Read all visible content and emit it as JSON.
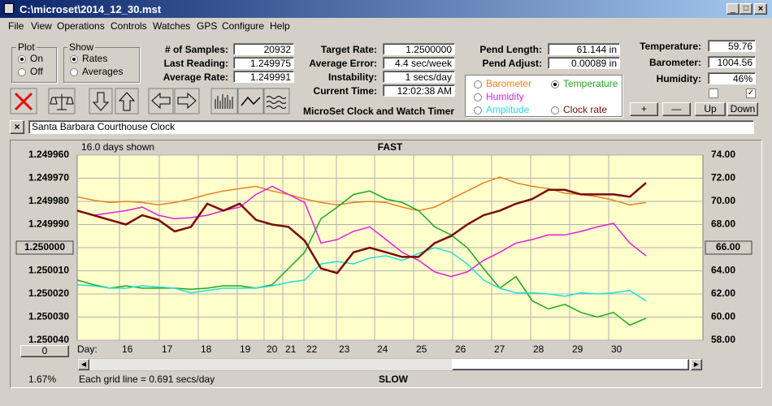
{
  "window": {
    "title": "C:\\microset\\2014_12_30.mst"
  },
  "menu": [
    "File",
    "View",
    "Operations",
    "Controls",
    "Watches",
    "GPS",
    "Configure",
    "Help"
  ],
  "plot_group": {
    "label": "Plot",
    "options": [
      "On",
      "Off"
    ]
  },
  "show_group": {
    "label": "Show",
    "options": [
      "Rates",
      "Averages"
    ]
  },
  "readouts": {
    "samples": {
      "label": "# of Samples:",
      "value": "20932"
    },
    "last_reading": {
      "label": "Last Reading:",
      "value": "1.249975"
    },
    "average_rate": {
      "label": "Average Rate:",
      "value": "1.249991"
    },
    "target_rate": {
      "label": "Target Rate:",
      "value": "1.2500000"
    },
    "average_error": {
      "label": "Average Error:",
      "value": "4.4 sec/week"
    },
    "instability": {
      "label": "Instability:",
      "value": "1 secs/day"
    },
    "current_time": {
      "label": "Current Time:",
      "value": "12:02:38 AM"
    },
    "pend_length": {
      "label": "Pend Length:",
      "value": "61.144 in"
    },
    "pend_adjust": {
      "label": "Pend Adjust:",
      "value": "0.00089 in"
    },
    "temperature": {
      "label": "Temperature:",
      "value": "59.76"
    },
    "barometer": {
      "label": "Barometer:",
      "value": "1004.56"
    },
    "humidity": {
      "label": "Humidity:",
      "value": "46%"
    }
  },
  "app_name": "MicroSet Clock and Watch Timer",
  "buttons": [
    "+",
    "—",
    "Up",
    "Down"
  ],
  "clock_name": "Santa Barbara Courthouse Clock",
  "chart": {
    "type": "line",
    "days_shown": "16.0 days shown",
    "top_label": "FAST",
    "bottom_label": "SLOW",
    "x_label": "Day:",
    "categories": [
      "16",
      "17",
      "18",
      "19",
      "20",
      "21",
      "22",
      "23",
      "24",
      "25",
      "26",
      "27",
      "28",
      "29",
      "30"
    ],
    "ylim": [
      1.24996,
      1.25004
    ],
    "y_inverted": true,
    "yticks": [
      {
        "value": 1.24996,
        "label": "1.249960"
      },
      {
        "value": 1.24997,
        "label": "1.249970"
      },
      {
        "value": 1.24998,
        "label": "1.249980"
      },
      {
        "value": 1.24999,
        "label": "1.249990"
      },
      {
        "value": 1.25,
        "label": "1.250000"
      },
      {
        "value": 1.25001,
        "label": "1.250010"
      },
      {
        "value": 1.25002,
        "label": "1.250020"
      },
      {
        "value": 1.25003,
        "label": "1.250030"
      },
      {
        "value": 1.25004,
        "label": "1.250040"
      }
    ],
    "y2lim": [
      58,
      74
    ],
    "y2ticks": [
      {
        "value": 58,
        "label": "58.00"
      },
      {
        "value": 60,
        "label": "60.00"
      },
      {
        "value": 62,
        "label": "62.00"
      },
      {
        "value": 64,
        "label": "64.00"
      },
      {
        "value": 66,
        "label": "66.00"
      },
      {
        "value": 68,
        "label": "68.00"
      },
      {
        "value": 70,
        "label": "70.00"
      },
      {
        "value": 72,
        "label": "72.00"
      },
      {
        "value": 74,
        "label": "74.00"
      }
    ],
    "grid": true,
    "background": "#ffffcc",
    "series": [
      {
        "name": "Barometer",
        "color": "#e8821e",
        "axis": "y2",
        "values": [
          70.4,
          70.1,
          69.9,
          70.0,
          69.9,
          69.7,
          69.9,
          70.2,
          70.6,
          70.9,
          71.1,
          71.3,
          70.9,
          70.6,
          70.2,
          69.9,
          69.7,
          69.9,
          70.0,
          69.9,
          69.5,
          69.2,
          69.5,
          70.2,
          70.9,
          71.6,
          72.1,
          71.6,
          71.3,
          71.1,
          70.7,
          70.6,
          70.4,
          70.1,
          69.7,
          69.9
        ]
      },
      {
        "name": "Temperature",
        "color": "#1fa81f",
        "axis": "y2",
        "values": [
          63.2,
          62.8,
          62.5,
          62.7,
          62.5,
          62.5,
          62.5,
          62.4,
          62.5,
          62.7,
          62.7,
          62.5,
          62.8,
          64.2,
          65.6,
          68.5,
          69.5,
          70.6,
          70.9,
          70.2,
          69.9,
          69.2,
          67.8,
          67.1,
          66.0,
          64.2,
          62.5,
          63.5,
          61.4,
          60.7,
          61.1,
          60.4,
          60.0,
          60.4,
          59.3,
          59.9
        ]
      },
      {
        "name": "Humidity",
        "color": "#dd22dd",
        "axis": "y2",
        "values": [
          69.2,
          68.8,
          69.0,
          69.2,
          69.5,
          68.8,
          68.5,
          68.6,
          68.8,
          69.2,
          69.5,
          70.6,
          71.3,
          70.6,
          69.9,
          66.4,
          66.7,
          67.4,
          67.8,
          66.7,
          65.6,
          64.9,
          63.9,
          63.5,
          63.9,
          64.9,
          65.6,
          66.4,
          66.7,
          67.1,
          67.1,
          67.4,
          67.8,
          68.1,
          66.4,
          65.3
        ]
      },
      {
        "name": "Amplitude",
        "color": "#22dddd",
        "axis": "y2",
        "values": [
          62.8,
          62.7,
          62.5,
          62.5,
          62.7,
          62.6,
          62.5,
          62.1,
          62.3,
          62.5,
          62.5,
          62.5,
          62.7,
          63.0,
          63.2,
          64.6,
          64.8,
          64.6,
          65.1,
          65.3,
          64.9,
          65.5,
          66.0,
          65.6,
          64.6,
          63.2,
          62.5,
          62.1,
          62.1,
          62.0,
          61.8,
          62.1,
          62.0,
          62.1,
          62.3,
          61.4
        ]
      },
      {
        "name": "Clock rate",
        "color": "#7a0a0a",
        "axis": "y",
        "values": [
          1.249984,
          1.249986,
          1.249988,
          1.24999,
          1.249986,
          1.249988,
          1.249993,
          1.249991,
          1.249981,
          1.249984,
          1.249981,
          1.249988,
          1.24999,
          1.249991,
          1.249997,
          1.250009,
          1.250011,
          1.250002,
          1.25,
          1.250002,
          1.250004,
          1.250004,
          1.249998,
          1.249995,
          1.24999,
          1.249986,
          1.249984,
          1.249981,
          1.249979,
          1.249975,
          1.249975,
          1.249977,
          1.249977,
          1.249977,
          1.249978,
          1.249972
        ]
      }
    ],
    "offset_box": "0",
    "percent": "1.67%",
    "grid_note": "Each grid line = 0.691 secs/day"
  }
}
